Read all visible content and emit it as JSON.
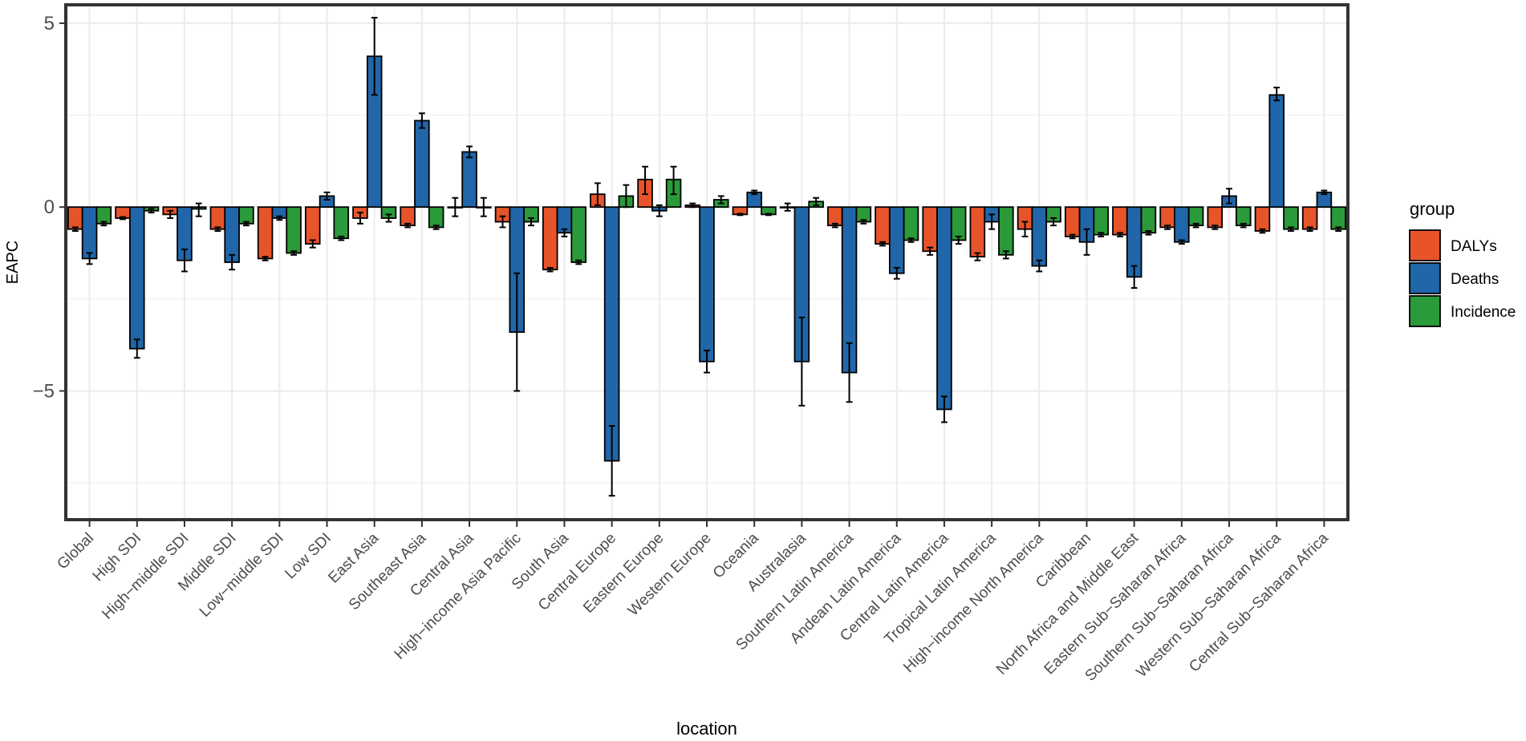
{
  "chart_data": {
    "type": "bar",
    "xlabel": "location",
    "ylabel": "EAPC",
    "ylim": [
      -8.5,
      5.5
    ],
    "yticks": [
      5,
      0,
      -5
    ],
    "ytick_labels": [
      "5",
      "0",
      "−5"
    ],
    "grid": true,
    "legend": {
      "title": "group",
      "position": "right"
    },
    "categories": [
      "Global",
      "High SDI",
      "High−middle SDI",
      "Middle SDI",
      "Low−middle SDI",
      "Low SDI",
      "East Asia",
      "Southeast Asia",
      "Central Asia",
      "High−income Asia Pacific",
      "South Asia",
      "Central Europe",
      "Eastern Europe",
      "Western Europe",
      "Oceania",
      "Australasia",
      "Southern Latin America",
      "Andean Latin America",
      "Central Latin America",
      "Tropical Latin America",
      "High−income North America",
      "Caribbean",
      "North Africa and Middle East",
      "Eastern Sub−Saharan Africa",
      "Southern Sub−Saharan Africa",
      "Western Sub−Saharan Africa",
      "Central Sub−Saharan Africa"
    ],
    "series": [
      {
        "name": "DALYs",
        "color": "#e8542a",
        "values": [
          -0.6,
          -0.3,
          -0.2,
          -0.6,
          -1.4,
          -1.0,
          -0.3,
          -0.5,
          0.0,
          -0.4,
          -1.7,
          0.35,
          0.75,
          0.05,
          -0.2,
          0.0,
          -0.5,
          -1.0,
          -1.2,
          -1.35,
          -0.6,
          -0.8,
          -0.75,
          -0.55,
          -0.55,
          -0.65,
          -0.6
        ],
        "err_low": [
          -0.65,
          -0.33,
          -0.3,
          -0.65,
          -1.45,
          -1.1,
          -0.45,
          -0.55,
          -0.25,
          -0.55,
          -1.75,
          0.05,
          0.35,
          0.0,
          -0.22,
          -0.1,
          -0.55,
          -1.05,
          -1.3,
          -1.45,
          -0.8,
          -0.85,
          -0.8,
          -0.6,
          -0.6,
          -0.7,
          -0.65
        ],
        "err_high": [
          -0.55,
          -0.27,
          -0.1,
          -0.55,
          -1.35,
          -0.9,
          -0.15,
          -0.45,
          0.25,
          -0.25,
          -1.65,
          0.65,
          1.1,
          0.1,
          -0.18,
          0.1,
          -0.45,
          -0.95,
          -1.1,
          -1.25,
          -0.4,
          -0.75,
          -0.7,
          -0.5,
          -0.5,
          -0.6,
          -0.55
        ]
      },
      {
        "name": "Deaths",
        "color": "#2166a8",
        "values": [
          -1.4,
          -3.85,
          -1.45,
          -1.5,
          -0.3,
          0.3,
          4.1,
          2.35,
          1.5,
          -3.4,
          -0.7,
          -6.9,
          -0.1,
          -4.2,
          0.4,
          -4.2,
          -4.5,
          -1.8,
          -5.5,
          -0.4,
          -1.6,
          -0.95,
          -1.9,
          -0.95,
          0.3,
          3.05,
          0.4
        ],
        "err_low": [
          -1.55,
          -4.1,
          -1.75,
          -1.7,
          -0.35,
          0.2,
          3.05,
          2.15,
          1.35,
          -5.0,
          -0.8,
          -7.85,
          -0.25,
          -4.5,
          0.35,
          -5.4,
          -5.3,
          -1.95,
          -5.85,
          -0.6,
          -1.75,
          -1.3,
          -2.2,
          -1.0,
          0.1,
          2.9,
          0.35
        ],
        "err_high": [
          -1.25,
          -3.6,
          -1.15,
          -1.3,
          -0.25,
          0.4,
          5.15,
          2.55,
          1.65,
          -1.8,
          -0.6,
          -5.95,
          0.05,
          -3.9,
          0.45,
          -3.0,
          -3.7,
          -1.65,
          -5.15,
          -0.2,
          -1.45,
          -0.6,
          -1.6,
          -0.9,
          0.5,
          3.25,
          0.45
        ]
      },
      {
        "name": "Incidence",
        "color": "#2b9a3a",
        "values": [
          -0.45,
          -0.1,
          -0.05,
          -0.45,
          -1.25,
          -0.85,
          -0.3,
          -0.55,
          0.0,
          -0.4,
          -1.5,
          0.3,
          0.75,
          0.2,
          -0.2,
          0.15,
          -0.4,
          -0.9,
          -0.9,
          -1.3,
          -0.4,
          -0.75,
          -0.7,
          -0.5,
          -0.5,
          -0.6,
          -0.6
        ],
        "err_low": [
          -0.5,
          -0.15,
          -0.25,
          -0.5,
          -1.3,
          -0.9,
          -0.4,
          -0.6,
          -0.25,
          -0.5,
          -1.55,
          0.0,
          0.35,
          0.1,
          -0.22,
          0.05,
          -0.45,
          -0.95,
          -1.0,
          -1.4,
          -0.5,
          -0.8,
          -0.75,
          -0.55,
          -0.55,
          -0.65,
          -0.65
        ],
        "err_high": [
          -0.4,
          -0.05,
          0.1,
          -0.4,
          -1.2,
          -0.8,
          -0.2,
          -0.5,
          0.25,
          -0.3,
          -1.45,
          0.6,
          1.1,
          0.3,
          -0.18,
          0.25,
          -0.35,
          -0.85,
          -0.8,
          -1.2,
          -0.3,
          -0.7,
          -0.65,
          -0.45,
          -0.45,
          -0.55,
          -0.55
        ]
      }
    ]
  }
}
